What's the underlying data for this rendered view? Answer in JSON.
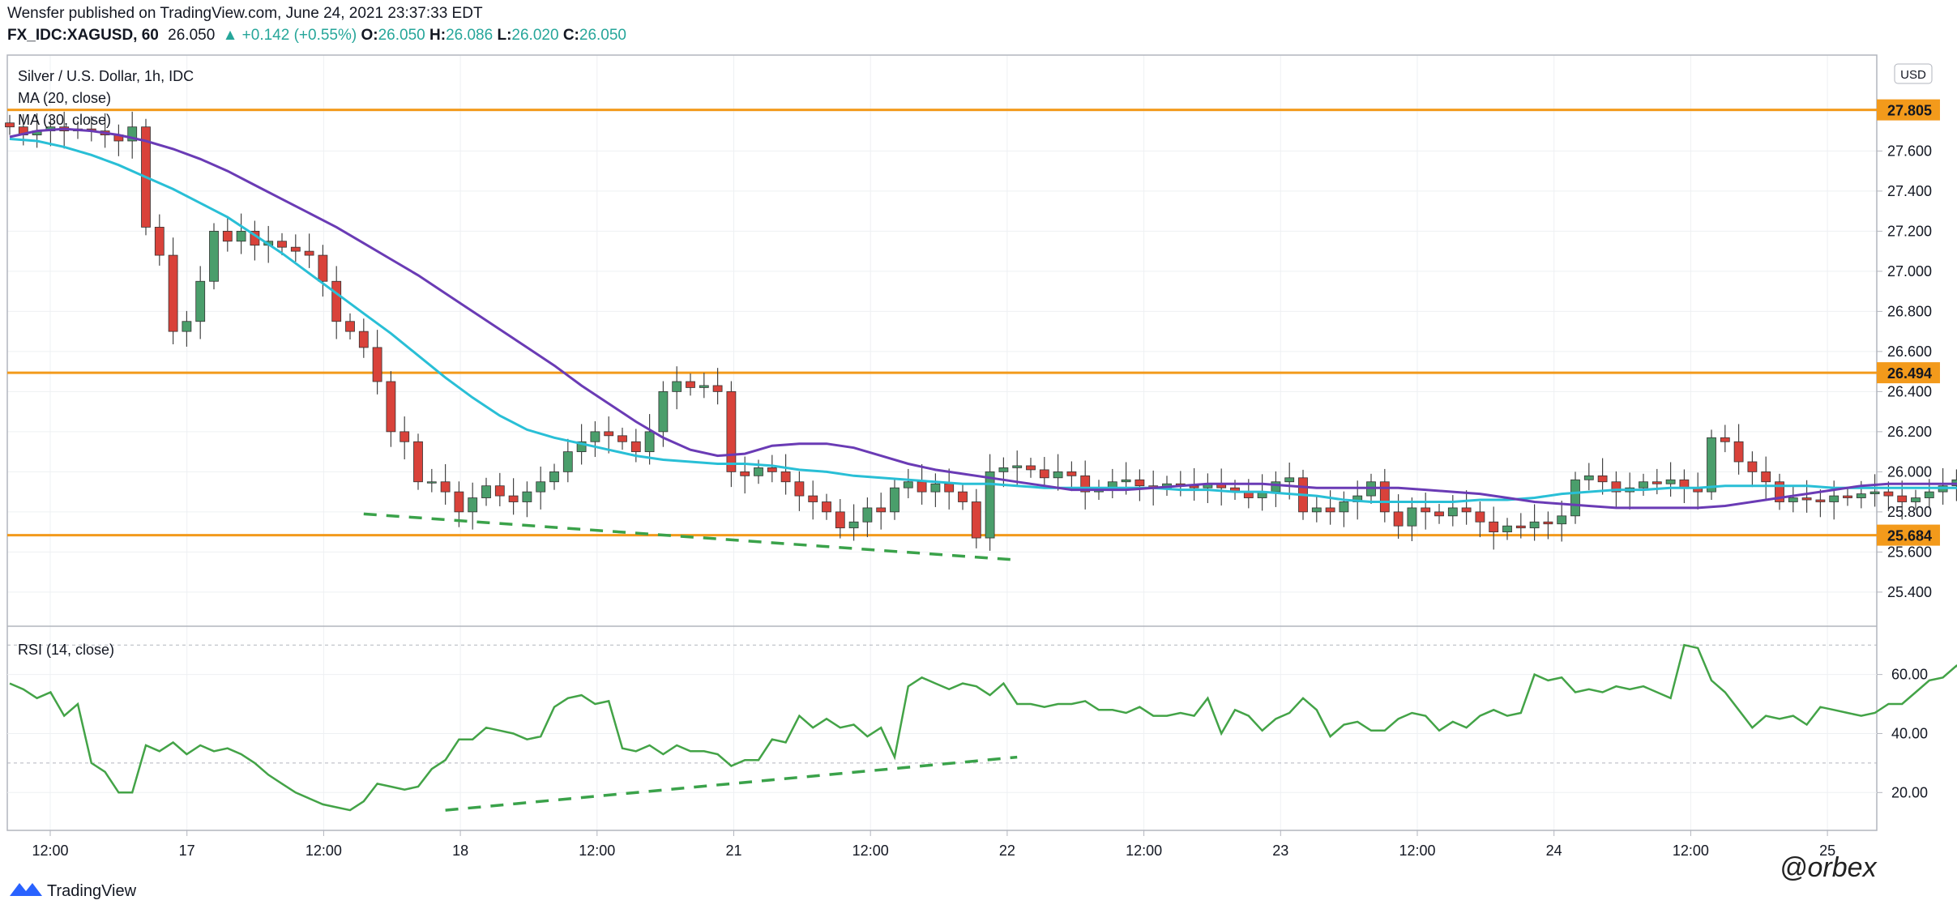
{
  "header": {
    "publisher": "Wensfer published on TradingView.com, June 24, 2021 23:37:33 EDT",
    "symbol": "FX_IDC:XAGUSD, 60",
    "last": "26.050",
    "change": "+0.142 (+0.55%)",
    "o_label": "O:",
    "o": "26.050",
    "h_label": "H:",
    "h": "26.086",
    "l_label": "L:",
    "l": "26.020",
    "c_label": "C:",
    "c": "26.050"
  },
  "legend": {
    "title": "Silver / U.S. Dollar, 1h, IDC",
    "ma20": "MA (20, close)",
    "ma30": "MA (30, close)",
    "rsi": "RSI (14, close)"
  },
  "footer": {
    "brand": "TradingView",
    "watermark": "@orbex"
  },
  "colors": {
    "up": "#4a9e6b",
    "down": "#d9423a",
    "ma20": "#6a3bb5",
    "ma30": "#29bfd6",
    "level": "#f39a1b",
    "rsi": "#43a347",
    "grid": "#eef0f3"
  },
  "chart_data": [
    {
      "type": "candlestick",
      "title": "Silver / U.S. Dollar, 1h, IDC",
      "currency": "USD",
      "ylim": [
        25.25,
        28.05
      ],
      "y_ticks": [
        "25.400",
        "25.600",
        "25.800",
        "26.000",
        "26.200",
        "26.400",
        "26.600",
        "26.800",
        "27.000",
        "27.200",
        "27.400",
        "27.600",
        "27.800"
      ],
      "x_ticks": [
        "12:00",
        "17",
        "12:00",
        "18",
        "12:00",
        "21",
        "12:00",
        "22",
        "12:00",
        "23",
        "12:00",
        "24",
        "12:00",
        "25"
      ],
      "horizontal_levels": [
        "27.805",
        "26.494",
        "25.684"
      ],
      "close": [
        27.72,
        27.68,
        27.7,
        27.72,
        27.7,
        27.71,
        27.7,
        27.68,
        27.65,
        27.72,
        27.22,
        27.08,
        26.7,
        26.75,
        26.95,
        27.2,
        27.15,
        27.2,
        27.13,
        27.15,
        27.12,
        27.1,
        27.08,
        26.95,
        26.75,
        26.7,
        26.62,
        26.45,
        26.2,
        26.15,
        25.95,
        25.95,
        25.9,
        25.8,
        25.87,
        25.93,
        25.88,
        25.85,
        25.9,
        25.95,
        26.0,
        26.1,
        26.15,
        26.2,
        26.18,
        26.15,
        26.1,
        26.2,
        26.4,
        26.45,
        26.42,
        26.43,
        26.4,
        26.0,
        25.98,
        26.02,
        26.0,
        25.95,
        25.88,
        25.85,
        25.8,
        25.72,
        25.75,
        25.82,
        25.8,
        25.92,
        25.95,
        25.9,
        25.94,
        25.9,
        25.85,
        25.67,
        26.0,
        26.02,
        26.03,
        26.01,
        25.97,
        26.0,
        25.98,
        25.9,
        25.92,
        25.95,
        25.96,
        25.93,
        25.92,
        25.94,
        25.93,
        25.92,
        25.94,
        25.92,
        25.9,
        25.87,
        25.9,
        25.95,
        25.97,
        25.8,
        25.82,
        25.8,
        25.85,
        25.88,
        25.95,
        25.8,
        25.73,
        25.82,
        25.8,
        25.78,
        25.82,
        25.8,
        25.75,
        25.7,
        25.73,
        25.72,
        25.75,
        25.74,
        25.78,
        25.96,
        25.98,
        25.95,
        25.9,
        25.92,
        25.95,
        25.94,
        25.96,
        25.92,
        25.9,
        26.17,
        26.15,
        26.05,
        26.0,
        25.95,
        25.85,
        25.87,
        25.86,
        25.85,
        25.88,
        25.87,
        25.89,
        25.9,
        25.88,
        25.85,
        25.87,
        25.9,
        25.93,
        25.96,
        26.0,
        26.05,
        26.07,
        26.08,
        26.06,
        26.03,
        26.0,
        25.98,
        25.97,
        25.95,
        25.93,
        25.9,
        25.92,
        25.91,
        25.9,
        25.93,
        26.06,
        26.06,
        26.05
      ],
      "ma20": [
        27.67,
        27.7,
        27.71,
        27.7,
        27.68,
        27.65,
        27.61,
        27.56,
        27.5,
        27.43,
        27.36,
        27.29,
        27.22,
        27.14,
        27.06,
        26.98,
        26.89,
        26.8,
        26.71,
        26.62,
        26.53,
        26.43,
        26.34,
        26.25,
        26.17,
        26.11,
        26.08,
        26.09,
        26.13,
        26.14,
        26.14,
        26.12,
        26.08,
        26.04,
        26.01,
        25.99,
        25.97,
        25.95,
        25.93,
        25.91,
        25.91,
        25.91,
        25.92,
        25.93,
        25.94,
        25.94,
        25.94,
        25.93,
        25.92,
        25.92,
        25.92,
        25.92,
        25.91,
        25.9,
        25.89,
        25.87,
        25.85,
        25.84,
        25.83,
        25.82,
        25.82,
        25.82,
        25.82,
        25.83,
        25.85,
        25.87,
        25.89,
        25.91,
        25.93,
        25.94,
        25.94,
        25.94,
        25.94,
        25.94,
        25.93,
        25.92,
        25.91,
        25.92,
        25.93,
        25.94,
        25.96,
        25.97,
        25.98
      ],
      "ma30": [
        27.66,
        27.65,
        27.62,
        27.58,
        27.53,
        27.47,
        27.41,
        27.34,
        27.27,
        27.18,
        27.09,
        26.99,
        26.89,
        26.79,
        26.69,
        26.58,
        26.47,
        26.37,
        26.28,
        26.21,
        26.17,
        26.14,
        26.11,
        26.08,
        26.06,
        26.05,
        26.04,
        26.04,
        26.03,
        26.01,
        26.0,
        25.98,
        25.97,
        25.96,
        25.95,
        25.94,
        25.94,
        25.93,
        25.92,
        25.92,
        25.92,
        25.92,
        25.92,
        25.91,
        25.91,
        25.9,
        25.9,
        25.89,
        25.88,
        25.86,
        25.85,
        25.85,
        25.85,
        25.85,
        25.86,
        25.86,
        25.87,
        25.89,
        25.9,
        25.91,
        25.91,
        25.92,
        25.92,
        25.93,
        25.93,
        25.93,
        25.93,
        25.92,
        25.92,
        25.92,
        25.92,
        25.92,
        25.92,
        25.92,
        25.92,
        25.92,
        25.92,
        25.93,
        25.93,
        25.94,
        25.94,
        25.94,
        25.95
      ],
      "trendline": {
        "from": [
          26,
          25.79
        ],
        "to": [
          74,
          25.56
        ],
        "style": "dashed",
        "color": "green"
      }
    },
    {
      "type": "line",
      "title": "RSI (14, close)",
      "ylim": [
        8,
        75
      ],
      "y_ticks": [
        "20.00",
        "40.00",
        "60.00"
      ],
      "guide_levels": [
        30,
        70
      ],
      "values": [
        57,
        55,
        52,
        54,
        46,
        50,
        30,
        27,
        20,
        20,
        36,
        34,
        37,
        33,
        36,
        34,
        35,
        33,
        30,
        26,
        23,
        20,
        18,
        16,
        15,
        14,
        17,
        23,
        22,
        21,
        22,
        28,
        31,
        38,
        38,
        42,
        41,
        40,
        38,
        39,
        49,
        52,
        53,
        50,
        51,
        35,
        34,
        36,
        33,
        36,
        34,
        34,
        33,
        29,
        31,
        31,
        38,
        37,
        46,
        42,
        45,
        42,
        43,
        39,
        42,
        32,
        56,
        59,
        57,
        55,
        57,
        56,
        53,
        57,
        50,
        50,
        49,
        50,
        50,
        51,
        48,
        48,
        47,
        49,
        46,
        46,
        47,
        46,
        52,
        40,
        48,
        46,
        41,
        45,
        47,
        52,
        48,
        39,
        43,
        44,
        41,
        41,
        45,
        47,
        46,
        41,
        44,
        42,
        46,
        48,
        46,
        47,
        60,
        58,
        59,
        54,
        55,
        54,
        56,
        55,
        56,
        54,
        52,
        70,
        69,
        58,
        54,
        48,
        42,
        46,
        45,
        46,
        43,
        49,
        48,
        47,
        46,
        47,
        50,
        50,
        54,
        58,
        59,
        63,
        60,
        61,
        57,
        55,
        57,
        54,
        49,
        51,
        46,
        43,
        46,
        48,
        46,
        44,
        60,
        59,
        58
      ],
      "trendline": {
        "from": [
          32,
          14
        ],
        "to": [
          74,
          32
        ],
        "style": "dashed",
        "color": "green"
      }
    }
  ]
}
